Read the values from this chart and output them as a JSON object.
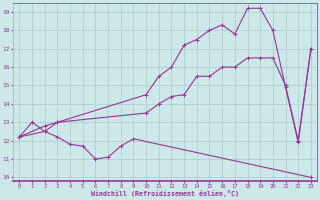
{
  "xlabel": "Windchill (Refroidissement éolien,°C)",
  "xlim": [
    -0.5,
    23.5
  ],
  "ylim": [
    9.8,
    19.5
  ],
  "xticks": [
    0,
    1,
    2,
    3,
    4,
    5,
    6,
    7,
    8,
    9,
    10,
    11,
    12,
    13,
    14,
    15,
    16,
    17,
    18,
    19,
    20,
    21,
    22,
    23
  ],
  "yticks": [
    10,
    11,
    12,
    13,
    14,
    15,
    16,
    17,
    18,
    19
  ],
  "bg_color": "#cde8e8",
  "grid_color": "#aacccc",
  "line_color": "#993399",
  "line1_x": [
    0,
    1,
    2,
    3,
    4,
    5,
    6,
    7,
    8,
    9,
    23
  ],
  "line1_y": [
    12.2,
    13.0,
    12.5,
    12.2,
    11.8,
    11.7,
    11.0,
    11.1,
    11.7,
    12.1,
    10.0
  ],
  "line2_x": [
    0,
    2,
    3,
    10,
    11,
    12,
    13,
    14,
    15,
    16,
    17,
    18,
    19,
    20,
    21,
    22,
    23
  ],
  "line2_y": [
    12.2,
    12.5,
    13.0,
    13.5,
    14.0,
    14.4,
    14.5,
    15.5,
    15.5,
    16.0,
    16.0,
    16.5,
    16.5,
    16.5,
    15.0,
    12.0,
    17.0
  ],
  "line3_x": [
    0,
    2,
    3,
    10,
    11,
    12,
    13,
    14,
    15,
    16,
    17,
    18,
    19,
    20,
    21,
    22,
    23
  ],
  "line3_y": [
    12.2,
    12.8,
    13.0,
    14.5,
    15.5,
    16.0,
    17.2,
    17.5,
    18.0,
    18.3,
    17.8,
    19.2,
    19.2,
    18.0,
    14.9,
    11.9,
    17.0
  ]
}
